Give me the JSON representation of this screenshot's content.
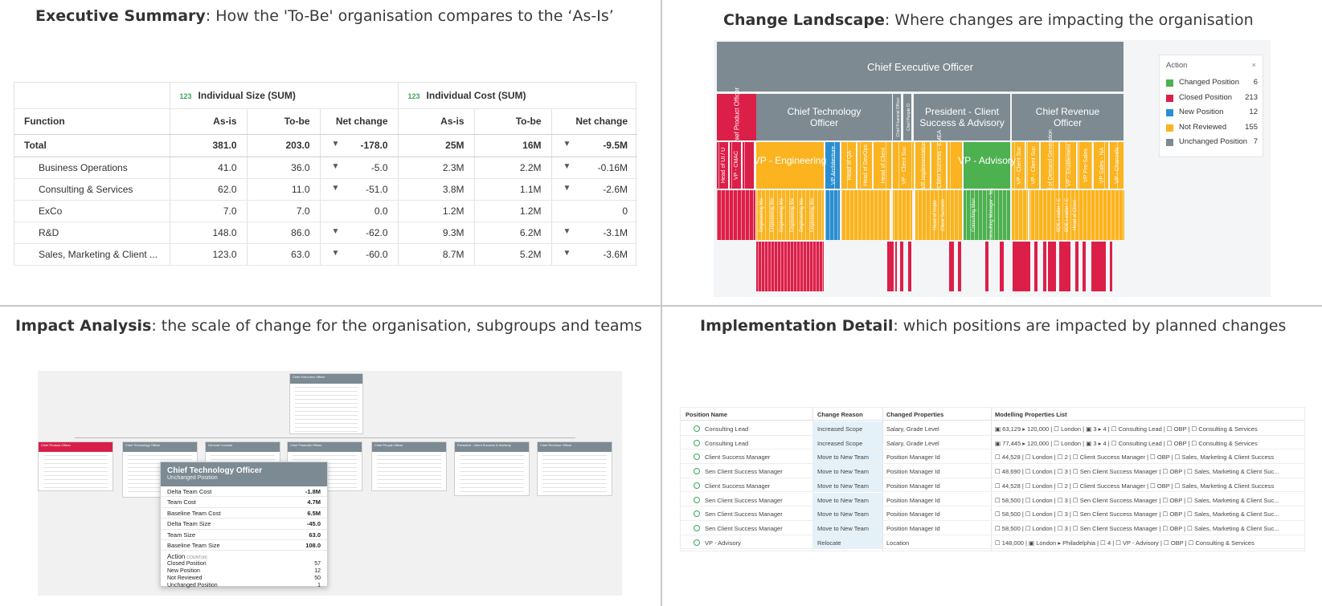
{
  "titles": {
    "exec": {
      "bold": "Executive Summary",
      "rest": ": How the 'To-Be' organisation compares to the ‘As-Is’"
    },
    "land": {
      "bold": "Change Landscape",
      "rest": ": Where changes are impacting the organisation"
    },
    "impact": {
      "bold": "Impact Analysis",
      "rest": ": the scale of change for the organisation, subgroups and teams"
    },
    "impl": {
      "bold": "Implementation Detail",
      "rest": ": which positions are impacted by planned changes"
    }
  },
  "exec_table": {
    "group_tag": "123",
    "groups": [
      "Individual Size",
      "Individual Cost"
    ],
    "group_suffix": "(SUM)",
    "headers": [
      "Function",
      "As-is",
      "To-be",
      "Net change",
      "As-is",
      "To-be",
      "Net change"
    ],
    "rows": [
      {
        "name": "Total",
        "size_as": "381.0",
        "size_to": "203.0",
        "size_net": "-178.0",
        "size_dn": true,
        "cost_as": "25M",
        "cost_to": "16M",
        "cost_net": "-9.5M",
        "cost_dn": true
      },
      {
        "name": "Business Operations",
        "size_as": "41.0",
        "size_to": "36.0",
        "size_net": "-5.0",
        "size_dn": true,
        "cost_as": "2.3M",
        "cost_to": "2.2M",
        "cost_net": "-0.16M",
        "cost_dn": true
      },
      {
        "name": "Consulting & Services",
        "size_as": "62.0",
        "size_to": "11.0",
        "size_net": "-51.0",
        "size_dn": true,
        "cost_as": "3.8M",
        "cost_to": "1.1M",
        "cost_net": "-2.6M",
        "cost_dn": true
      },
      {
        "name": "ExCo",
        "size_as": "7.0",
        "size_to": "7.0",
        "size_net": "0.0",
        "size_dn": false,
        "cost_as": "1.2M",
        "cost_to": "1.2M",
        "cost_net": "0",
        "cost_dn": false
      },
      {
        "name": "R&D",
        "size_as": "148.0",
        "size_to": "86.0",
        "size_net": "-62.0",
        "size_dn": true,
        "cost_as": "9.3M",
        "cost_to": "6.2M",
        "cost_net": "-3.1M",
        "cost_dn": true
      },
      {
        "name": "Sales, Marketing & Client ...",
        "size_as": "123.0",
        "size_to": "63.0",
        "size_net": "-60.0",
        "size_dn": true,
        "cost_as": "8.7M",
        "cost_to": "5.2M",
        "cost_net": "-3.6M",
        "cost_dn": true
      }
    ]
  },
  "landscape": {
    "colors": {
      "changed": "#4db14f",
      "closed": "#dc1f48",
      "new": "#2b8ecf",
      "not_reviewed": "#fbb41f",
      "unchanged": "#7d8a92",
      "vertical_area": "#e5e8ea"
    },
    "ceo": "Chief Executive Officer",
    "level2": [
      {
        "label": "Chief Product Officer",
        "status": "closed",
        "rotated": true
      },
      {
        "label": "Chief Technology Officer",
        "status": "unchanged"
      },
      {
        "label": "Chief Financial Officer",
        "status": "unchanged",
        "rotated": true
      },
      {
        "label": "Chief People O",
        "status": "unchanged",
        "rotated": true
      },
      {
        "label": "President -  Client Success & Advisory",
        "status": "unchanged"
      },
      {
        "label": "Chief Revenue Officer",
        "status": "unchanged"
      }
    ],
    "level3": [
      {
        "label": "Head of UI / U",
        "status": "closed",
        "rotated": true
      },
      {
        "label": "VP - CMAC",
        "status": "closed",
        "rotated": true
      },
      {
        "label": "VP - Engineering",
        "status": "not_reviewed"
      },
      {
        "label": "VP Architecture",
        "status": "new",
        "rotated": true
      },
      {
        "label": "Head of QA",
        "status": "not_reviewed",
        "rotated": true
      },
      {
        "label": "Head of DevOps",
        "status": "not_reviewed",
        "rotated": true
      },
      {
        "label": "Head of Client",
        "status": "not_reviewed",
        "rotated": true
      },
      {
        "label": "VP - Client Suc",
        "status": "not_reviewed",
        "rotated": true
      },
      {
        "label": "VP Implementation",
        "status": "not_reviewed",
        "rotated": true
      },
      {
        "label": "VP - Client Success - EMEA",
        "status": "not_reviewed",
        "rotated": true
      },
      {
        "label": "VP - Advisory",
        "status": "changed"
      },
      {
        "label": "VP - Client Suc",
        "status": "not_reviewed",
        "rotated": true
      },
      {
        "label": "VP - Client Suc",
        "status": "not_reviewed",
        "rotated": true
      },
      {
        "label": "Head of Demand Generation",
        "status": "not_reviewed",
        "rotated": true
      },
      {
        "label": "VP - Enablement",
        "status": "not_reviewed",
        "rotated": true
      },
      {
        "label": "VP Pre-Sales",
        "status": "not_reviewed",
        "rotated": true
      },
      {
        "label": "VP Sales - NA",
        "status": "not_reviewed",
        "rotated": true
      },
      {
        "label": "VP - Channels",
        "status": "not_reviewed",
        "rotated": true
      }
    ],
    "level4_labels": [
      "Engineering Ma",
      "Engineering Ma",
      "Engineering Ma",
      "Engineering Ma",
      "Engineering Ma",
      "Engineering Ma",
      "Head of Imple",
      "Client Success",
      "Consulting Man",
      "Consulting Manager - NA",
      "BDE Leader / C",
      "BDE Leader / C",
      "Head of Client"
    ],
    "legend": {
      "title": "Action",
      "close": "×",
      "items": [
        {
          "label": "Changed Position",
          "count": "6",
          "key": "changed"
        },
        {
          "label": "Closed Position",
          "count": "213",
          "key": "closed"
        },
        {
          "label": "New Position",
          "count": "12",
          "key": "new"
        },
        {
          "label": "Not Reviewed",
          "count": "155",
          "key": "not_reviewed"
        },
        {
          "label": "Unchanged Position",
          "count": "7",
          "key": "unchanged"
        }
      ]
    }
  },
  "impact": {
    "top_card": "Chief Executive Officer",
    "cards": [
      "Chief Product Officer",
      "Chief Technology Officer",
      "General Counsel",
      "Chief Financial Officer",
      "Chief People Officer",
      "President - Client Success & Advisory",
      "Chief Revenue Officer"
    ],
    "detail": {
      "title": "Chief Technology Officer",
      "subtitle": "Unchanged Position",
      "rows": [
        {
          "label": "Delta Team Cost",
          "value": "-1.8M"
        },
        {
          "label": "Team Cost",
          "value": "4.7M"
        },
        {
          "label": "Baseline Team Cost",
          "value": "6.5M"
        },
        {
          "label": "Delta Team Size",
          "value": "-45.0"
        },
        {
          "label": "Team Size",
          "value": "63.0"
        },
        {
          "label": "Baseline Team Size",
          "value": "108.0"
        }
      ],
      "action_title": "Action",
      "action_suffix": "COUNT(Id)",
      "actions": [
        {
          "label": "Closed Position",
          "value": "57"
        },
        {
          "label": "New Position",
          "value": "12"
        },
        {
          "label": "Not Reviewed",
          "value": "50"
        },
        {
          "label": "Unchanged Position",
          "value": "1"
        }
      ]
    }
  },
  "impl": {
    "headers": [
      "Position Name",
      "Change Reason",
      "Changed Properties",
      "Modelling Properties List"
    ],
    "rows": [
      {
        "name": "Consulting Lead",
        "reason": "Increased Scope",
        "props": "Salary, Grade Level",
        "list": "▣ 63,129 ▸ 120,000 | ☐ London | ▣ 3 ▸ 4 | ☐ Consulting Lead | ☐ OBP | ☐ Consulting & Services"
      },
      {
        "name": "Consulting Lead",
        "reason": "Increased Scope",
        "props": "Salary, Grade Level",
        "list": "▣ 77,445 ▸ 120,000 | ☐ London | ▣ 3 ▸ 4 | ☐ Consulting Lead | ☐ OBP | ☐ Consulting & Services"
      },
      {
        "name": "Client Success Manager",
        "reason": "Move to New Team",
        "props": "Position Manager Id",
        "list": "☐ 44,528 | ☐ London | ☐ 2 | ☐ Client Success Manager | ☐ OBP | ☐ Sales, Marketing & Client Success"
      },
      {
        "name": "Sen Client Success Manager",
        "reason": "Move to New Team",
        "props": "Position Manager Id",
        "list": "☐ 48,690 | ☐ London | ☐ 3 | ☐ Sen Client Success Manager | ☐ OBP | ☐ Sales, Marketing & Client Suc..."
      },
      {
        "name": "Client Success Manager",
        "reason": "Move to New Team",
        "props": "Position Manager Id",
        "list": "☐ 44,528 | ☐ London | ☐ 2 | ☐ Client Success Manager | ☐ OBP | ☐ Sales, Marketing & Client Success"
      },
      {
        "name": "Sen Client Success Manager",
        "reason": "Move to New Team",
        "props": "Position Manager Id",
        "list": "☐ 58,500 | ☐ London | ☐ 3 | ☐ Sen Client Success Manager | ☐ OBP | ☐ Sales, Marketing & Client Suc..."
      },
      {
        "name": "Sen Client Success Manager",
        "reason": "Move to New Team",
        "props": "Position Manager Id",
        "list": "☐ 58,500 | ☐ London | ☐ 3 | ☐ Sen Client Success Manager | ☐ OBP | ☐ Sales, Marketing & Client Suc..."
      },
      {
        "name": "Sen Client Success Manager",
        "reason": "Move to New Team",
        "props": "Position Manager Id",
        "list": "☐ 58,500 | ☐ London | ☐ 3 | ☐ Sen Client Success Manager | ☐ OBP | ☐ Sales, Marketing & Client Suc..."
      },
      {
        "name": "VP - Advisory",
        "reason": "Relocate",
        "props": "Location",
        "list": "☐ 148,000 | ▣ London ▸ Philadelphia | ☐ 4 | ☐ VP - Advisory | ☐ OBP | ☐ Consulting & Services"
      }
    ]
  }
}
